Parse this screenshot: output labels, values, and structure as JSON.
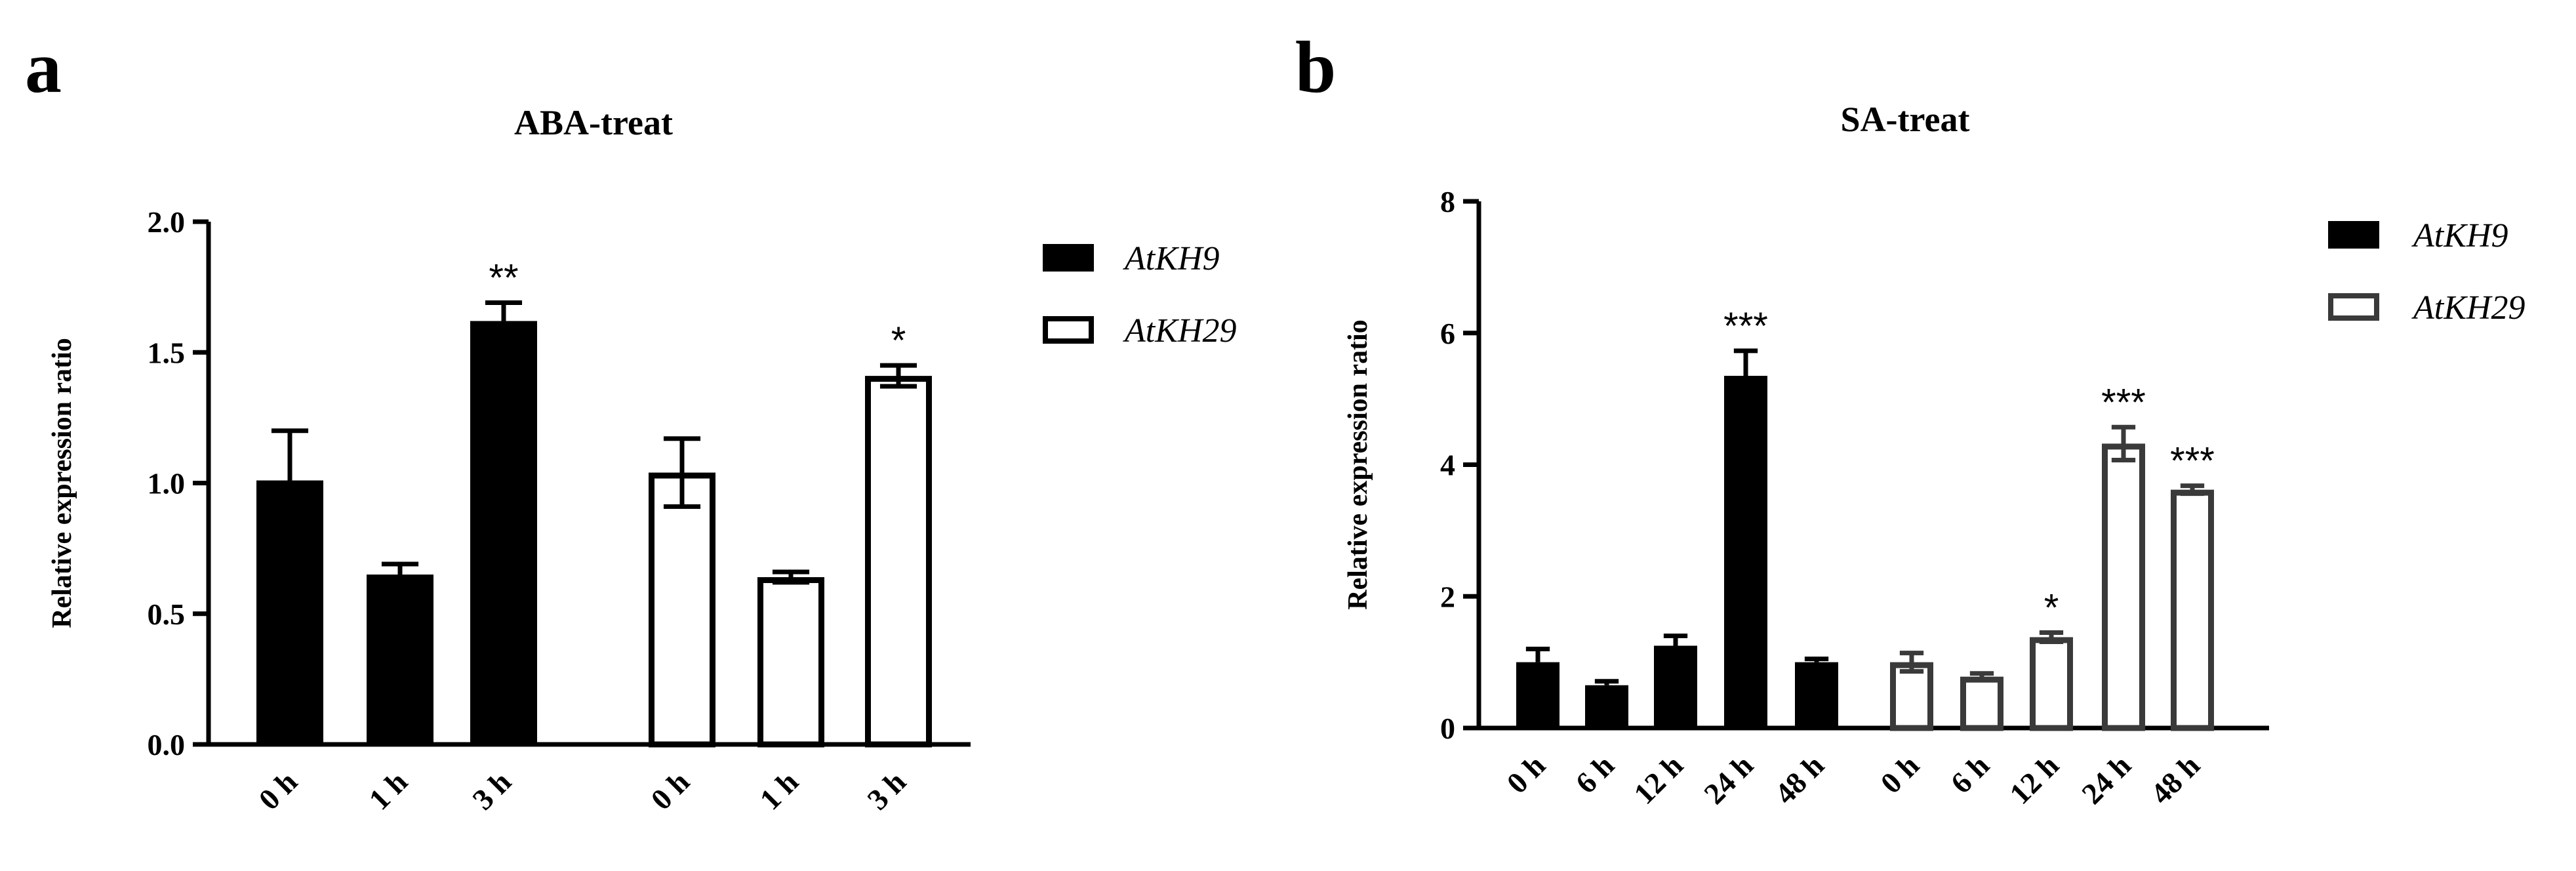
{
  "chart_data": [
    {
      "panel": "a",
      "type": "bar",
      "title": "ABA-treat",
      "xlabel": "",
      "ylabel": "Relative expression ratio",
      "ylim": [
        0,
        2.0
      ],
      "yticks": [
        "0.0",
        "0.5",
        "1.0",
        "1.5",
        "2.0"
      ],
      "legend": "top-right",
      "series": [
        {
          "name": "AtKH9",
          "fill": "#000000",
          "stroke": "#000000",
          "categories": [
            "0 h",
            "1 h",
            "3 h"
          ],
          "values": [
            1.01,
            0.65,
            1.62
          ],
          "errors": [
            0.19,
            0.04,
            0.07
          ],
          "annotations": [
            "",
            "",
            "**"
          ]
        },
        {
          "name": "AtKH29",
          "fill": "#ffffff",
          "stroke": "#000000",
          "categories": [
            "0 h",
            "1 h",
            "3 h"
          ],
          "values": [
            1.04,
            0.64,
            1.41
          ],
          "errors": [
            0.13,
            0.02,
            0.04
          ],
          "annotations": [
            "",
            "",
            "*"
          ]
        }
      ]
    },
    {
      "panel": "b",
      "type": "bar",
      "title": "SA-treat",
      "xlabel": "",
      "ylabel": "Relative expression ratio",
      "ylim": [
        0,
        8
      ],
      "yticks": [
        "0",
        "2",
        "4",
        "6",
        "8"
      ],
      "legend": "top-right",
      "series": [
        {
          "name": "AtKH9",
          "fill": "#000000",
          "stroke": "#000000",
          "categories": [
            "0 h",
            "6 h",
            "12 h",
            "24 h",
            "48 h"
          ],
          "values": [
            1.0,
            0.65,
            1.25,
            5.35,
            1.0
          ],
          "errors": [
            0.2,
            0.06,
            0.15,
            0.38,
            0.05
          ],
          "annotations": [
            "",
            "",
            "",
            "***",
            ""
          ]
        },
        {
          "name": "AtKH29",
          "fill": "#ffffff",
          "stroke": "#3a3a3a",
          "categories": [
            "0 h",
            "6 h",
            "12 h",
            "24 h",
            "48 h"
          ],
          "values": [
            1.0,
            0.78,
            1.38,
            4.32,
            3.62
          ],
          "errors": [
            0.14,
            0.05,
            0.07,
            0.25,
            0.06
          ],
          "annotations": [
            "",
            "",
            "*",
            "***",
            "***"
          ]
        }
      ]
    }
  ]
}
